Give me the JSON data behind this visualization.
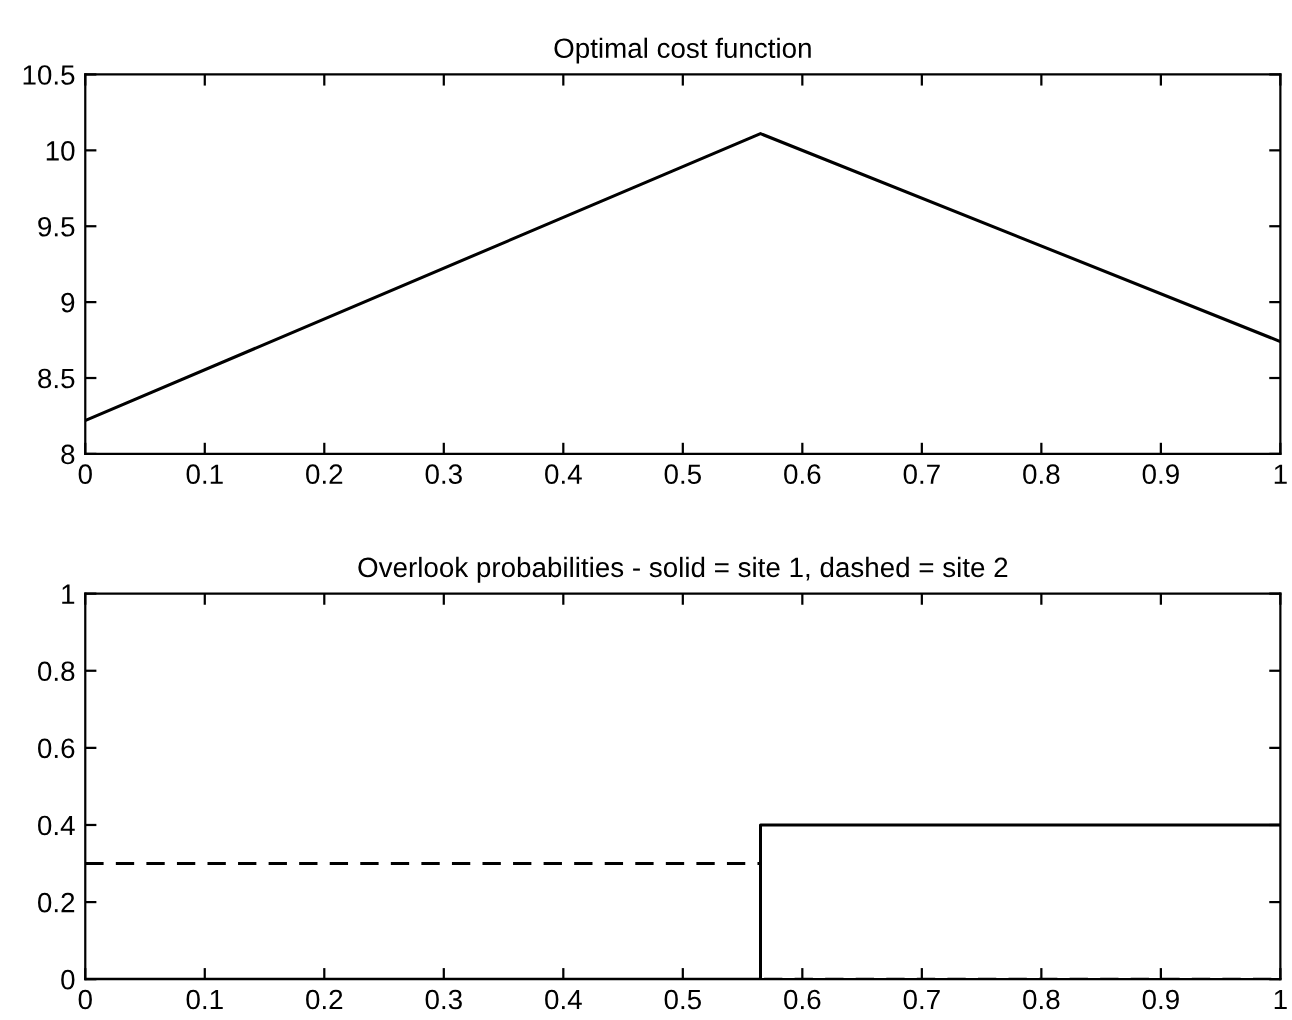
{
  "chart_data": [
    {
      "type": "line",
      "title": "Optimal cost function",
      "x": [
        0,
        0.565,
        1
      ],
      "series": [
        {
          "color": "#000000",
          "values": [
            8.22,
            10.11,
            8.74
          ]
        }
      ],
      "xlim": [
        0,
        1
      ],
      "xticks": [
        0,
        0.1,
        0.2,
        0.3,
        0.4,
        0.5,
        0.6,
        0.7,
        0.8,
        0.9,
        1
      ],
      "ylim": [
        8,
        10.5
      ],
      "yticks": [
        8,
        8.5,
        9,
        9.5,
        10,
        10.5
      ],
      "grid": false,
      "legend": false
    },
    {
      "type": "step",
      "title": "Overlook probabilities - solid = site 1, dashed = site 2",
      "x": [
        0,
        0.565,
        1
      ],
      "series": [
        {
          "color": "#000000",
          "line_style": "solid",
          "values": [
            0,
            0.4,
            0.4
          ]
        },
        {
          "color": "#000000",
          "line_style": "dashed",
          "values": [
            0.3,
            0,
            0
          ]
        }
      ],
      "xlim": [
        0,
        1
      ],
      "xticks": [
        0,
        0.1,
        0.2,
        0.3,
        0.4,
        0.5,
        0.6,
        0.7,
        0.8,
        0.9,
        1
      ],
      "ylim": [
        0,
        1
      ],
      "yticks": [
        0,
        0.2,
        0.4,
        0.6,
        0.8,
        1
      ],
      "grid": false,
      "legend": false
    }
  ]
}
